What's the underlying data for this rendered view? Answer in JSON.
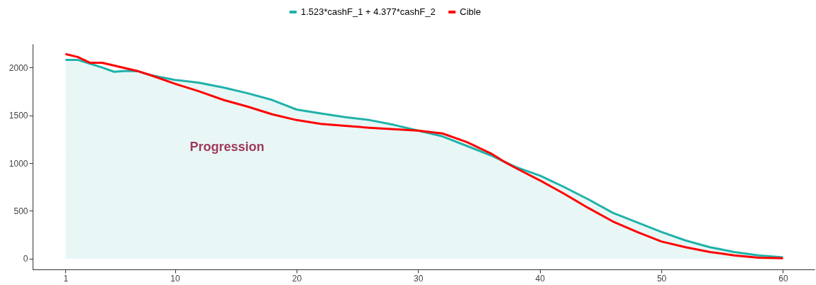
{
  "chart_data": {
    "type": "line",
    "legend": "top",
    "grid": false,
    "line_style": "solid",
    "marker": "none",
    "xlim": [
      -1.7,
      62.6
    ],
    "ylim": [
      -112,
      2246
    ],
    "xticks": [
      1,
      10,
      20,
      30,
      40,
      50,
      60
    ],
    "yticks": [
      0,
      500,
      1000,
      1500,
      2000
    ],
    "annotations": [
      "Progression"
    ],
    "x": [
      1,
      2,
      3,
      4,
      5,
      6,
      7,
      8,
      10,
      12,
      14,
      16,
      18,
      20,
      22,
      24,
      26,
      28,
      30,
      32,
      34,
      36,
      37,
      38,
      40,
      42,
      44,
      46,
      48,
      50,
      52,
      54,
      56,
      58,
      60
    ],
    "series": [
      {
        "name": "1.523*cashF_1 + 4.377*cashF_2",
        "type": "area",
        "color": "#20b2aa",
        "values": [
          2080,
          2080,
          2040,
          2000,
          1955,
          1965,
          1960,
          1920,
          1870,
          1840,
          1790,
          1730,
          1660,
          1560,
          1520,
          1480,
          1450,
          1400,
          1340,
          1280,
          1180,
          1080,
          1020,
          960,
          870,
          750,
          620,
          480,
          380,
          280,
          190,
          120,
          70,
          35,
          15
        ]
      },
      {
        "name": "Cible",
        "color": "#ff0000",
        "values": [
          2140,
          2110,
          2050,
          2050,
          2020,
          1990,
          1960,
          1920,
          1830,
          1750,
          1660,
          1590,
          1510,
          1450,
          1410,
          1390,
          1370,
          1355,
          1340,
          1310,
          1220,
          1100,
          1020,
          950,
          820,
          680,
          530,
          390,
          280,
          180,
          120,
          70,
          35,
          10,
          5
        ]
      }
    ]
  }
}
